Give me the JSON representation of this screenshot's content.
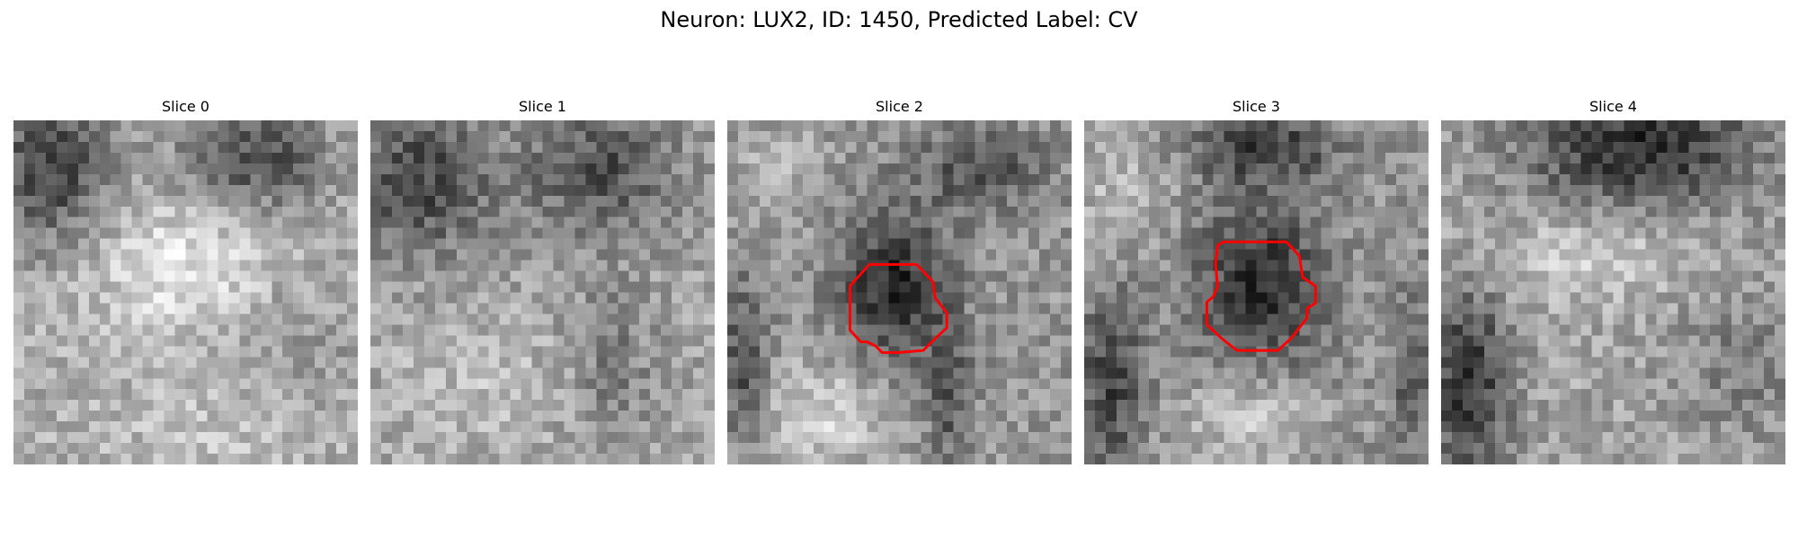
{
  "figure": {
    "title": "Neuron: LUX2, ID: 1450, Predicted Label: CV"
  },
  "slices": [
    {
      "title": "Slice 0",
      "seed": 11,
      "has_contour": false
    },
    {
      "title": "Slice 1",
      "seed": 23,
      "has_contour": false
    },
    {
      "title": "Slice 2",
      "seed": 37,
      "has_contour": true
    },
    {
      "title": "Slice 3",
      "seed": 51,
      "has_contour": true
    },
    {
      "title": "Slice 4",
      "seed": 67,
      "has_contour": false
    }
  ],
  "colors": {
    "contour": "#ff0000",
    "background": "#ffffff"
  },
  "image_grid": {
    "pixels_per_side": 32,
    "colormap": "gray"
  }
}
